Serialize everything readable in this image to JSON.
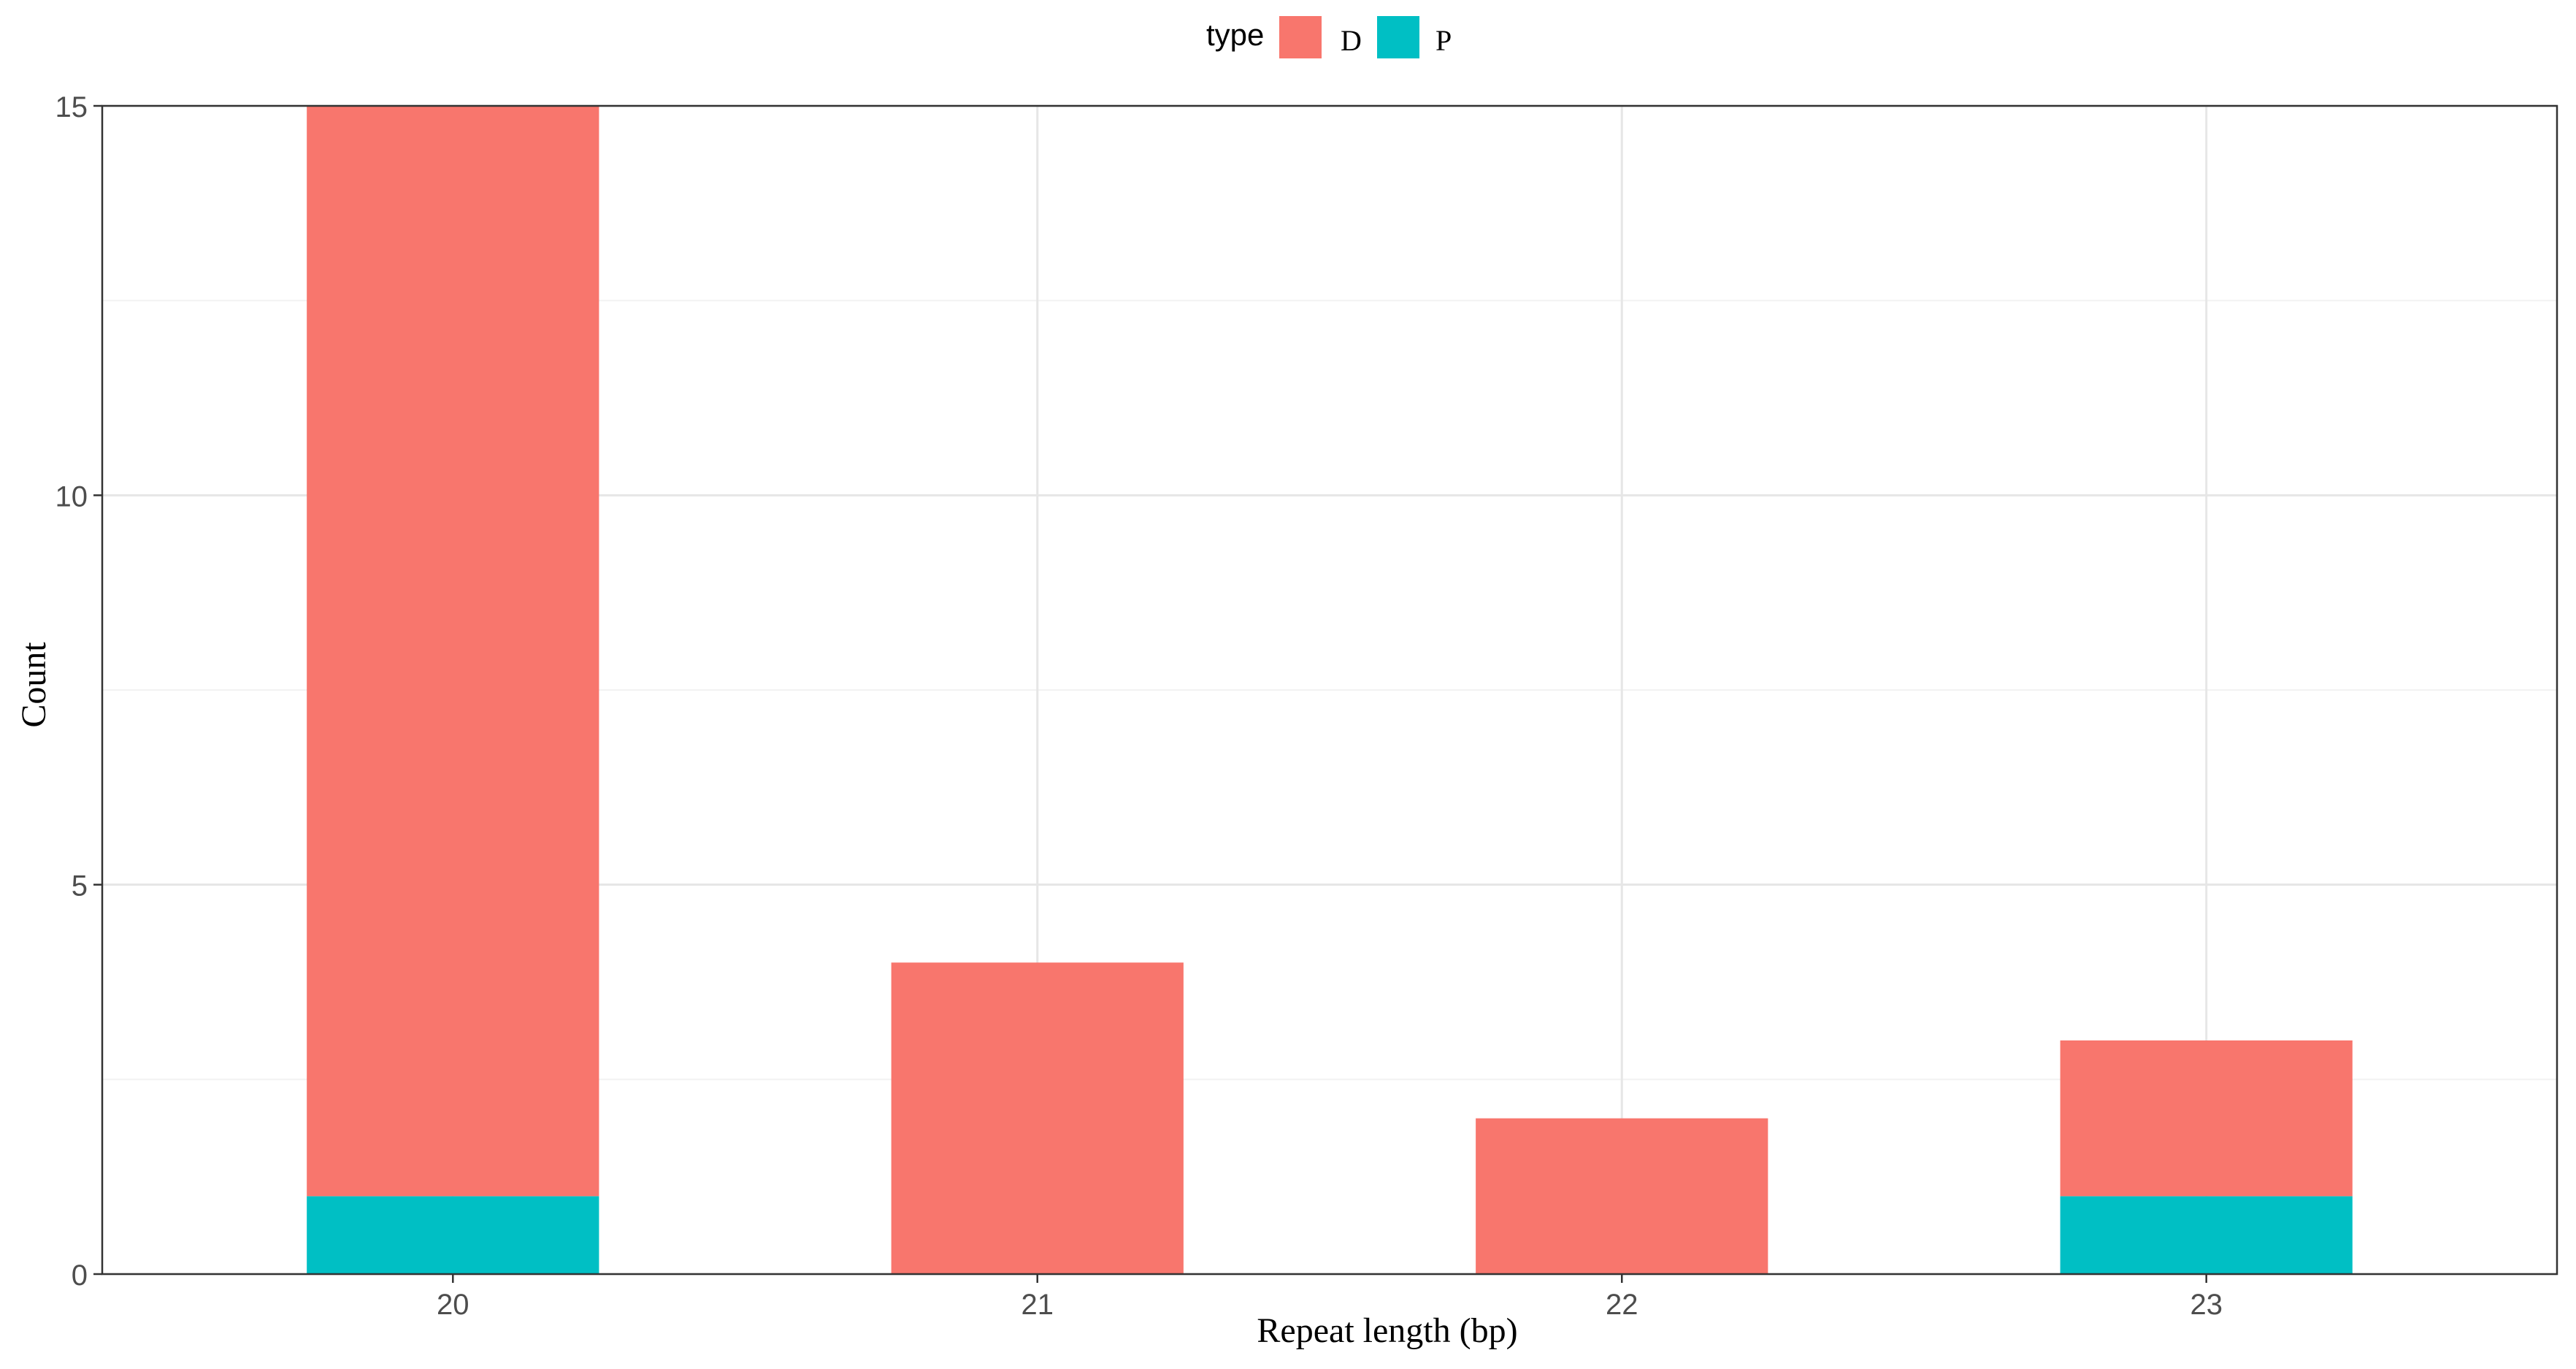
{
  "chart_data": {
    "type": "bar",
    "stacked": true,
    "categories": [
      "20",
      "21",
      "22",
      "23"
    ],
    "series": [
      {
        "name": "D",
        "values": [
          14,
          4,
          2,
          2
        ],
        "color": "#F8766D"
      },
      {
        "name": "P",
        "values": [
          1,
          0,
          0,
          1
        ],
        "color": "#00BFC4"
      }
    ],
    "xlabel": "Repeat length (bp)",
    "ylabel": "Count",
    "ylim": [
      0,
      15
    ],
    "yticks": [
      0,
      5,
      10,
      15
    ],
    "legend": {
      "title": "type",
      "position": "top",
      "entries": [
        "D",
        "P"
      ]
    },
    "grid": true
  }
}
